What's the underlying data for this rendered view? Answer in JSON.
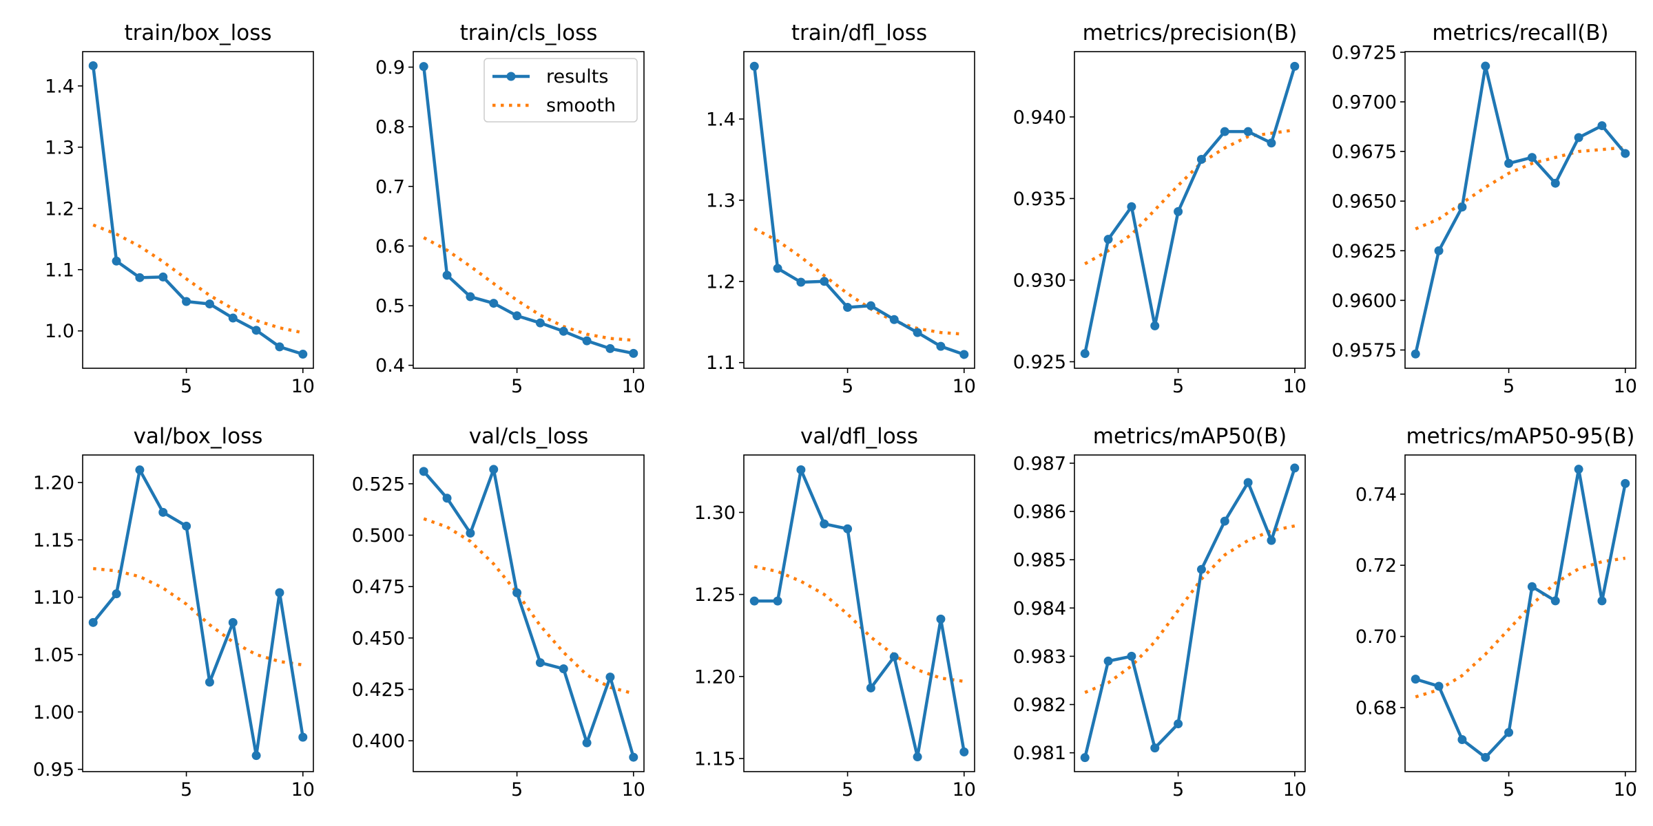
{
  "colors": {
    "results": "#1f77b4",
    "smooth": "#ff7f0e"
  },
  "legend": {
    "entries": [
      "results",
      "smooth"
    ],
    "placement": "upper-right of train/cls_loss panel"
  },
  "chart_data": [
    {
      "type": "line",
      "title": "train/box_loss",
      "x": [
        1,
        2,
        3,
        4,
        5,
        6,
        7,
        8,
        9,
        10
      ],
      "series": [
        {
          "name": "results",
          "values": [
            1.433,
            1.114,
            1.087,
            1.088,
            1.048,
            1.044,
            1.021,
            1.001,
            0.974,
            0.962
          ]
        },
        {
          "name": "smooth",
          "values": [
            1.173,
            1.158,
            1.138,
            1.113,
            1.085,
            1.058,
            1.036,
            1.017,
            1.005,
            0.997
          ]
        }
      ],
      "xticks": [
        5,
        10
      ],
      "xlim": [
        0.55,
        10.45
      ],
      "yticks": [
        1.0,
        1.1,
        1.2,
        1.3,
        1.4
      ],
      "ytick_labels": [
        "1.0",
        "1.1",
        "1.2",
        "1.3",
        "1.4"
      ],
      "ylim": [
        0.939,
        1.456
      ]
    },
    {
      "type": "line",
      "title": "train/cls_loss",
      "x": [
        1,
        2,
        3,
        4,
        5,
        6,
        7,
        8,
        9,
        10
      ],
      "series": [
        {
          "name": "results",
          "values": [
            0.901,
            0.551,
            0.515,
            0.504,
            0.483,
            0.471,
            0.457,
            0.441,
            0.428,
            0.42
          ]
        },
        {
          "name": "smooth",
          "values": [
            0.614,
            0.593,
            0.566,
            0.537,
            0.509,
            0.484,
            0.465,
            0.452,
            0.445,
            0.442
          ]
        }
      ],
      "xticks": [
        5,
        10
      ],
      "xlim": [
        0.55,
        10.45
      ],
      "yticks": [
        0.4,
        0.5,
        0.6,
        0.7,
        0.8,
        0.9
      ],
      "ytick_labels": [
        "0.4",
        "0.5",
        "0.6",
        "0.7",
        "0.8",
        "0.9"
      ],
      "ylim": [
        0.395,
        0.926
      ],
      "legend": true
    },
    {
      "type": "line",
      "title": "train/dfl_loss",
      "x": [
        1,
        2,
        3,
        4,
        5,
        6,
        7,
        8,
        9,
        10
      ],
      "series": [
        {
          "name": "results",
          "values": [
            1.465,
            1.216,
            1.199,
            1.2,
            1.168,
            1.17,
            1.153,
            1.137,
            1.12,
            1.11
          ]
        },
        {
          "name": "smooth",
          "values": [
            1.265,
            1.25,
            1.23,
            1.207,
            1.185,
            1.166,
            1.151,
            1.142,
            1.137,
            1.135
          ]
        }
      ],
      "xticks": [
        5,
        10
      ],
      "xlim": [
        0.55,
        10.45
      ],
      "yticks": [
        1.1,
        1.2,
        1.3,
        1.4
      ],
      "ytick_labels": [
        "1.1",
        "1.2",
        "1.3",
        "1.4"
      ],
      "ylim": [
        1.093,
        1.483
      ]
    },
    {
      "type": "line",
      "title": "metrics/precision(B)",
      "x": [
        1,
        2,
        3,
        4,
        5,
        6,
        7,
        8,
        9,
        10
      ],
      "series": [
        {
          "name": "results",
          "values": [
            0.9255,
            0.9325,
            0.9345,
            0.9272,
            0.9342,
            0.9374,
            0.9391,
            0.9391,
            0.9384,
            0.9431
          ]
        },
        {
          "name": "smooth",
          "values": [
            0.931,
            0.9318,
            0.9328,
            0.9343,
            0.9358,
            0.9372,
            0.9381,
            0.9388,
            0.939,
            0.9392
          ]
        }
      ],
      "xticks": [
        5,
        10
      ],
      "xlim": [
        0.55,
        10.45
      ],
      "yticks": [
        0.925,
        0.93,
        0.935,
        0.94
      ],
      "ytick_labels": [
        "0.925",
        "0.930",
        "0.935",
        "0.940"
      ],
      "ylim": [
        0.9246,
        0.944
      ]
    },
    {
      "type": "line",
      "title": "metrics/recall(B)",
      "x": [
        1,
        2,
        3,
        4,
        5,
        6,
        7,
        8,
        9,
        10
      ],
      "series": [
        {
          "name": "results",
          "values": [
            0.9573,
            0.9625,
            0.9647,
            0.9718,
            0.9669,
            0.9672,
            0.9659,
            0.9682,
            0.9688,
            0.9674
          ]
        },
        {
          "name": "smooth",
          "values": [
            0.9636,
            0.9641,
            0.9649,
            0.9657,
            0.9664,
            0.9669,
            0.9672,
            0.9675,
            0.9676,
            0.9677
          ]
        }
      ],
      "xticks": [
        5,
        10
      ],
      "xlim": [
        0.55,
        10.45
      ],
      "yticks": [
        0.9575,
        0.96,
        0.9625,
        0.965,
        0.9675,
        0.97,
        0.9725
      ],
      "ytick_labels": [
        "0.9575",
        "0.9600",
        "0.9625",
        "0.9650",
        "0.9675",
        "0.9700",
        "0.9725"
      ],
      "ylim": [
        0.95658,
        0.97253
      ]
    },
    {
      "type": "line",
      "title": "val/box_loss",
      "x": [
        1,
        2,
        3,
        4,
        5,
        6,
        7,
        8,
        9,
        10
      ],
      "series": [
        {
          "name": "results",
          "values": [
            1.078,
            1.103,
            1.211,
            1.174,
            1.162,
            1.026,
            1.078,
            0.962,
            1.104,
            0.978
          ]
        },
        {
          "name": "smooth",
          "values": [
            1.125,
            1.123,
            1.118,
            1.108,
            1.094,
            1.076,
            1.061,
            1.05,
            1.044,
            1.041
          ]
        }
      ],
      "xticks": [
        5,
        10
      ],
      "xlim": [
        0.55,
        10.45
      ],
      "yticks": [
        0.95,
        1.0,
        1.05,
        1.1,
        1.15,
        1.2
      ],
      "ytick_labels": [
        "0.95",
        "1.00",
        "1.05",
        "1.10",
        "1.15",
        "1.20"
      ],
      "ylim": [
        0.948,
        1.224
      ]
    },
    {
      "type": "line",
      "title": "val/cls_loss",
      "x": [
        1,
        2,
        3,
        4,
        5,
        6,
        7,
        8,
        9,
        10
      ],
      "series": [
        {
          "name": "results",
          "values": [
            0.531,
            0.518,
            0.501,
            0.532,
            0.472,
            0.438,
            0.435,
            0.399,
            0.431,
            0.392
          ]
        },
        {
          "name": "smooth",
          "values": [
            0.508,
            0.504,
            0.497,
            0.486,
            0.472,
            0.456,
            0.443,
            0.432,
            0.426,
            0.423
          ]
        }
      ],
      "xticks": [
        5,
        10
      ],
      "xlim": [
        0.55,
        10.45
      ],
      "yticks": [
        0.4,
        0.425,
        0.45,
        0.475,
        0.5,
        0.525
      ],
      "ytick_labels": [
        "0.400",
        "0.425",
        "0.450",
        "0.475",
        "0.500",
        "0.525"
      ],
      "ylim": [
        0.385,
        0.539
      ]
    },
    {
      "type": "line",
      "title": "val/dfl_loss",
      "x": [
        1,
        2,
        3,
        4,
        5,
        6,
        7,
        8,
        9,
        10
      ],
      "series": [
        {
          "name": "results",
          "values": [
            1.246,
            1.246,
            1.326,
            1.293,
            1.29,
            1.193,
            1.212,
            1.151,
            1.235,
            1.154
          ]
        },
        {
          "name": "smooth",
          "values": [
            1.267,
            1.264,
            1.258,
            1.25,
            1.238,
            1.224,
            1.213,
            1.204,
            1.199,
            1.197
          ]
        }
      ],
      "xticks": [
        5,
        10
      ],
      "xlim": [
        0.55,
        10.45
      ],
      "yticks": [
        1.15,
        1.2,
        1.25,
        1.3
      ],
      "ytick_labels": [
        "1.15",
        "1.20",
        "1.25",
        "1.30"
      ],
      "ylim": [
        1.142,
        1.335
      ]
    },
    {
      "type": "line",
      "title": "metrics/mAP50(B)",
      "x": [
        1,
        2,
        3,
        4,
        5,
        6,
        7,
        8,
        9,
        10
      ],
      "series": [
        {
          "name": "results",
          "values": [
            0.9809,
            0.9829,
            0.983,
            0.9811,
            0.9816,
            0.9848,
            0.9858,
            0.9866,
            0.9854,
            0.9869
          ]
        },
        {
          "name": "smooth",
          "values": [
            0.98225,
            0.98245,
            0.9828,
            0.9833,
            0.98395,
            0.9846,
            0.9851,
            0.9854,
            0.9856,
            0.9857
          ]
        }
      ],
      "xticks": [
        5,
        10
      ],
      "xlim": [
        0.55,
        10.45
      ],
      "yticks": [
        0.981,
        0.982,
        0.983,
        0.984,
        0.985,
        0.986,
        0.987
      ],
      "ytick_labels": [
        "0.981",
        "0.982",
        "0.983",
        "0.984",
        "0.985",
        "0.986",
        "0.987"
      ],
      "ylim": [
        0.98061,
        0.98717
      ]
    },
    {
      "type": "line",
      "title": "metrics/mAP50-95(B)",
      "x": [
        1,
        2,
        3,
        4,
        5,
        6,
        7,
        8,
        9,
        10
      ],
      "series": [
        {
          "name": "results",
          "values": [
            0.688,
            0.686,
            0.671,
            0.666,
            0.673,
            0.714,
            0.71,
            0.747,
            0.71,
            0.743
          ]
        },
        {
          "name": "smooth",
          "values": [
            0.683,
            0.685,
            0.689,
            0.695,
            0.702,
            0.709,
            0.715,
            0.719,
            0.721,
            0.722
          ]
        }
      ],
      "xticks": [
        5,
        10
      ],
      "xlim": [
        0.55,
        10.45
      ],
      "yticks": [
        0.68,
        0.7,
        0.72,
        0.74
      ],
      "ytick_labels": [
        "0.68",
        "0.70",
        "0.72",
        "0.74"
      ],
      "ylim": [
        0.662,
        0.751
      ]
    }
  ]
}
